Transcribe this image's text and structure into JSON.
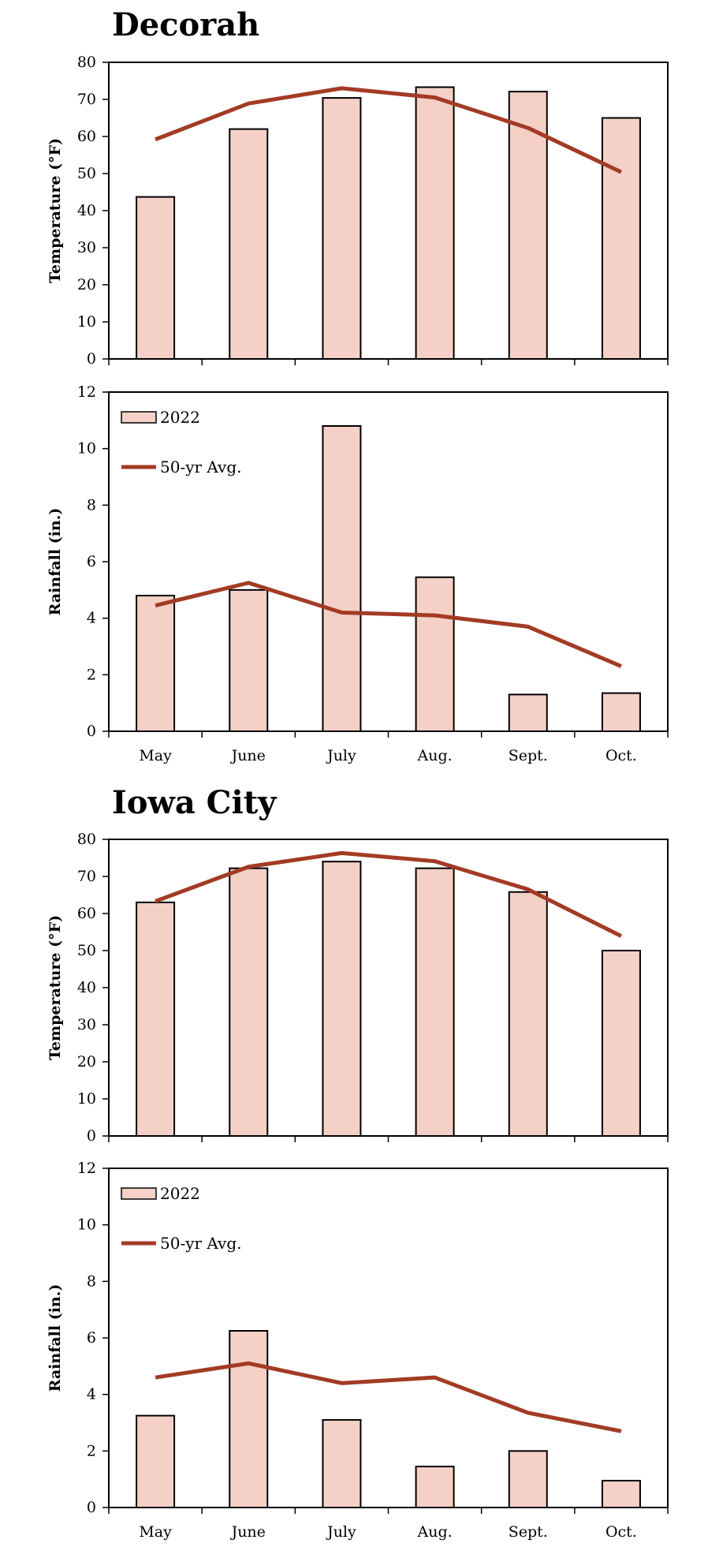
{
  "colors": {
    "bar_fill": "#f4d0c7",
    "bar_stroke": "#000000",
    "line": "#a33b24",
    "frame": "#000000"
  },
  "chart_data": [
    {
      "type": "bar",
      "title": "Decorah",
      "categories": [
        "May",
        "June",
        "July",
        "Aug.",
        "Sept.",
        "Oct."
      ],
      "ylabel": "Temperature  (°F)",
      "ylim": [
        0,
        80
      ],
      "yticks": [
        0,
        10,
        20,
        30,
        40,
        50,
        60,
        70,
        80
      ],
      "series": [
        {
          "name": "2022",
          "kind": "bar",
          "values": [
            43.7,
            62,
            70.4,
            73.3,
            72.1,
            65
          ]
        },
        {
          "name": "50-yr Avg.",
          "kind": "line",
          "values": [
            59.2,
            68.9,
            73,
            70.5,
            62.3,
            50.4
          ]
        }
      ],
      "legend": "none",
      "show_x_labels": false
    },
    {
      "type": "bar",
      "title": "",
      "categories": [
        "May",
        "June",
        "July",
        "Aug.",
        "Sept.",
        "Oct."
      ],
      "ylabel": "Rainfall (in.)",
      "ylim": [
        0,
        12
      ],
      "yticks": [
        0,
        2,
        4,
        6,
        8,
        10,
        12
      ],
      "series": [
        {
          "name": "2022",
          "kind": "bar",
          "values": [
            4.8,
            5,
            10.8,
            5.45,
            1.3,
            1.35
          ]
        },
        {
          "name": "50-yr Avg.",
          "kind": "line",
          "values": [
            4.45,
            5.25,
            4.2,
            4.1,
            3.7,
            2.3
          ]
        }
      ],
      "legend": "top-left",
      "show_x_labels": true
    },
    {
      "type": "bar",
      "title": "Iowa City",
      "categories": [
        "May",
        "June",
        "July",
        "Aug.",
        "Sept.",
        "Oct."
      ],
      "ylabel": "Temperature  (°F)",
      "ylim": [
        0,
        80
      ],
      "yticks": [
        0,
        10,
        20,
        30,
        40,
        50,
        60,
        70,
        80
      ],
      "series": [
        {
          "name": "2022",
          "kind": "bar",
          "values": [
            63,
            72.2,
            74,
            72.2,
            65.8,
            50
          ]
        },
        {
          "name": "50-yr Avg.",
          "kind": "line",
          "values": [
            63.3,
            72.6,
            76.3,
            74.1,
            66.5,
            53.9
          ]
        }
      ],
      "legend": "none",
      "show_x_labels": false
    },
    {
      "type": "bar",
      "title": "",
      "categories": [
        "May",
        "June",
        "July",
        "Aug.",
        "Sept.",
        "Oct."
      ],
      "ylabel": "Rainfall (in.)",
      "ylim": [
        0,
        12
      ],
      "yticks": [
        0,
        2,
        4,
        6,
        8,
        10,
        12
      ],
      "series": [
        {
          "name": "2022",
          "kind": "bar",
          "values": [
            3.25,
            6.25,
            3.1,
            1.45,
            2,
            0.95
          ]
        },
        {
          "name": "50-yr Avg.",
          "kind": "line",
          "values": [
            4.6,
            5.1,
            4.4,
            4.6,
            3.35,
            2.7
          ]
        }
      ],
      "legend": "top-left",
      "show_x_labels": true
    }
  ]
}
